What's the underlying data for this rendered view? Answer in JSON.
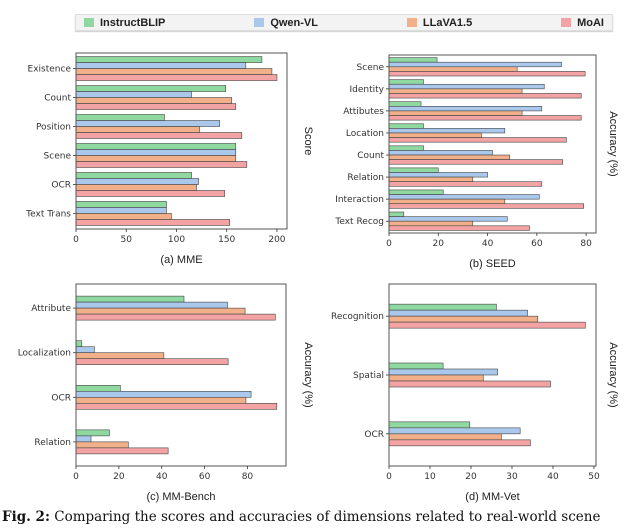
{
  "legend": [
    "InstructBLIP",
    "Qwen-VL",
    "LLaVA1.5",
    "MoAI"
  ],
  "colors": {
    "InstructBLIP": "#8fd9a0",
    "Qwen-VL": "#a9c8ec",
    "LLaVA1.5": "#f1b08a",
    "MoAI": "#f3a3a3"
  },
  "caption": {
    "label": "Fig. 2:",
    "text": "Comparing the scores and accuracies of dimensions related to real-world scene"
  },
  "chart_data": [
    {
      "type": "bar",
      "orientation": "horizontal",
      "title": "(a) MME",
      "xlabel": "",
      "ylabel": "Score",
      "xlim": [
        0,
        210
      ],
      "xticks": [
        0,
        50,
        100,
        150,
        200
      ],
      "categories": [
        "Existence",
        "Count",
        "Position",
        "Scene",
        "OCR",
        "Text Trans"
      ],
      "series": [
        {
          "name": "InstructBLIP",
          "values": [
            185,
            149,
            88,
            159,
            115,
            90
          ]
        },
        {
          "name": "Qwen-VL",
          "values": [
            169,
            115,
            143,
            159,
            122,
            90
          ]
        },
        {
          "name": "LLaVA1.5",
          "values": [
            195,
            155,
            123,
            159,
            120,
            95
          ]
        },
        {
          "name": "MoAI",
          "values": [
            200,
            159,
            165,
            170,
            148,
            153
          ]
        }
      ]
    },
    {
      "type": "bar",
      "orientation": "horizontal",
      "title": "(b) SEED",
      "xlabel": "",
      "ylabel": "Accuracy (%)",
      "xlim": [
        0,
        84
      ],
      "xticks": [
        0,
        20,
        40,
        60,
        80
      ],
      "categories": [
        "Scene",
        "Identity",
        "Attibutes",
        "Location",
        "Count",
        "Relation",
        "Interaction",
        "Text Recog"
      ],
      "series": [
        {
          "name": "InstructBLIP",
          "values": [
            19.5,
            14,
            13,
            14,
            14,
            20,
            22,
            6
          ]
        },
        {
          "name": "Qwen-VL",
          "values": [
            70,
            63,
            62,
            47,
            42,
            40,
            61,
            48
          ]
        },
        {
          "name": "LLaVA1.5",
          "values": [
            52,
            54,
            54,
            37.5,
            49,
            34,
            47,
            34
          ]
        },
        {
          "name": "MoAI",
          "values": [
            79.6,
            78,
            78,
            72,
            70.5,
            62,
            79,
            57
          ]
        }
      ]
    },
    {
      "type": "bar",
      "orientation": "horizontal",
      "title": "(c) MM-Bench",
      "xlabel": "",
      "ylabel": "Accuracy (%)",
      "xlim": [
        0,
        98
      ],
      "xticks": [
        0,
        20,
        40,
        60,
        80
      ],
      "categories": [
        "Attribute",
        "Localization",
        "OCR",
        "Relation"
      ],
      "series": [
        {
          "name": "InstructBLIP",
          "values": [
            50.4,
            2.7,
            20.7,
            15.6
          ]
        },
        {
          "name": "Qwen-VL",
          "values": [
            70.7,
            8.6,
            81.7,
            7
          ]
        },
        {
          "name": "LLaVA1.5",
          "values": [
            78.9,
            41,
            79.3,
            24.4
          ]
        },
        {
          "name": "MoAI",
          "values": [
            93,
            71,
            93.7,
            43
          ]
        }
      ]
    },
    {
      "type": "bar",
      "orientation": "horizontal",
      "title": "(d) MM-Vet",
      "xlabel": "",
      "ylabel": "Accuracy (%)",
      "xlim": [
        0,
        50.5
      ],
      "xticks": [
        0,
        10,
        20,
        30,
        40,
        50
      ],
      "categories": [
        "Recognition",
        "Spatial",
        "OCR"
      ],
      "series": [
        {
          "name": "InstructBLIP",
          "values": [
            26.2,
            13.2,
            19.7
          ]
        },
        {
          "name": "Qwen-VL",
          "values": [
            33.8,
            26.5,
            32
          ]
        },
        {
          "name": "LLaVA1.5",
          "values": [
            36.3,
            23,
            27.4
          ]
        },
        {
          "name": "MoAI",
          "values": [
            47.9,
            39.4,
            34.5
          ]
        }
      ]
    }
  ]
}
